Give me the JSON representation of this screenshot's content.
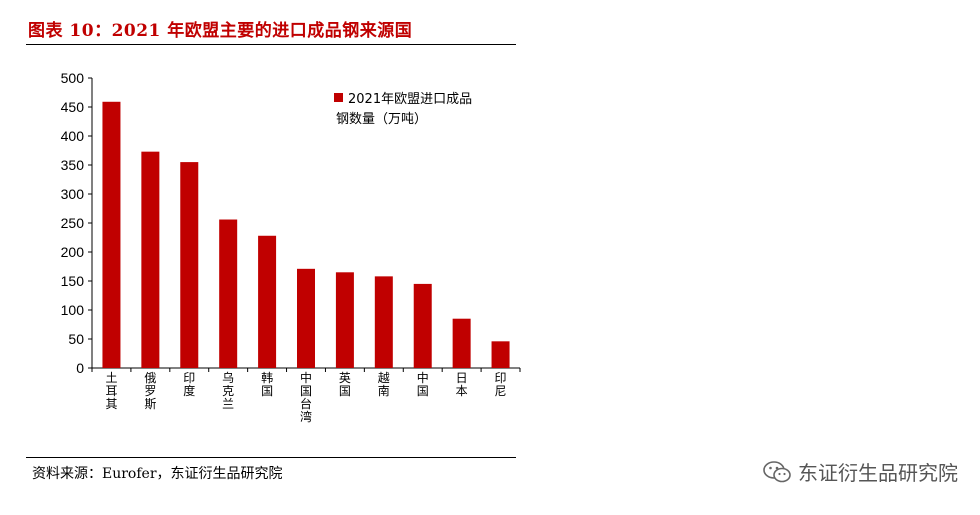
{
  "title": "图表 10：2021 年欧盟主要的进口成品钢来源国",
  "source": "资料来源：Eurofer，东证衍生品研究院",
  "watermark": "东证衍生品研究院",
  "colors": {
    "bar": "#c00000",
    "title": "#c00000"
  },
  "chart_data": {
    "type": "bar",
    "categories": [
      "土耳其",
      "俄罗斯",
      "印度",
      "乌克兰",
      "韩国",
      "中国台湾",
      "英国",
      "越南",
      "中国",
      "日本",
      "印尼"
    ],
    "series": [
      {
        "name": "2021年欧盟进口成品钢数量（万吨）",
        "values": [
          459,
          373,
          355,
          256,
          228,
          171,
          165,
          158,
          145,
          85,
          46
        ]
      }
    ],
    "ylim": [
      0,
      500
    ],
    "yticks": [
      0,
      50,
      100,
      150,
      200,
      250,
      300,
      350,
      400,
      450,
      500
    ],
    "legend_lines": [
      "2021年欧盟进口成品",
      "钢数量（万吨）"
    ],
    "legend_position": "top-right",
    "grid": false
  }
}
